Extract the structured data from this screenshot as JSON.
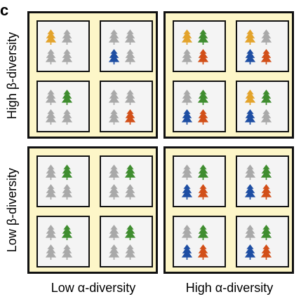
{
  "panel_label": "c",
  "y_labels": {
    "top": "High β-diversity",
    "bottom": "Low β-diversity"
  },
  "x_labels": {
    "left": "Low α-diversity",
    "right": "High α-diversity"
  },
  "colors": {
    "gray": "#a9a9a9",
    "yellow": "#e3a32b",
    "green": "#3f8d2f",
    "blue": "#1e4ea3",
    "red": "#d24f18"
  },
  "quadrants": [
    {
      "name": "high-beta-low-alpha",
      "plots": [
        [
          "yellow",
          "gray",
          "gray",
          "gray"
        ],
        [
          "gray",
          "gray",
          "blue",
          "gray"
        ],
        [
          "gray",
          "green",
          "gray",
          "gray"
        ],
        [
          "gray",
          "gray",
          "gray",
          "red"
        ]
      ]
    },
    {
      "name": "high-beta-high-alpha",
      "plots": [
        [
          "yellow",
          "green",
          "gray",
          "red"
        ],
        [
          "yellow",
          "gray",
          "blue",
          "red"
        ],
        [
          "gray",
          "green",
          "blue",
          "red"
        ],
        [
          "yellow",
          "green",
          "blue",
          "gray"
        ]
      ]
    },
    {
      "name": "low-beta-low-alpha",
      "plots": [
        [
          "gray",
          "green",
          "gray",
          "gray"
        ],
        [
          "gray",
          "green",
          "gray",
          "gray"
        ],
        [
          "gray",
          "green",
          "gray",
          "gray"
        ],
        [
          "gray",
          "green",
          "gray",
          "gray"
        ]
      ]
    },
    {
      "name": "low-beta-high-alpha",
      "plots": [
        [
          "gray",
          "green",
          "blue",
          "red"
        ],
        [
          "gray",
          "green",
          "blue",
          "red"
        ],
        [
          "gray",
          "green",
          "blue",
          "red"
        ],
        [
          "gray",
          "green",
          "blue",
          "red"
        ]
      ]
    }
  ]
}
